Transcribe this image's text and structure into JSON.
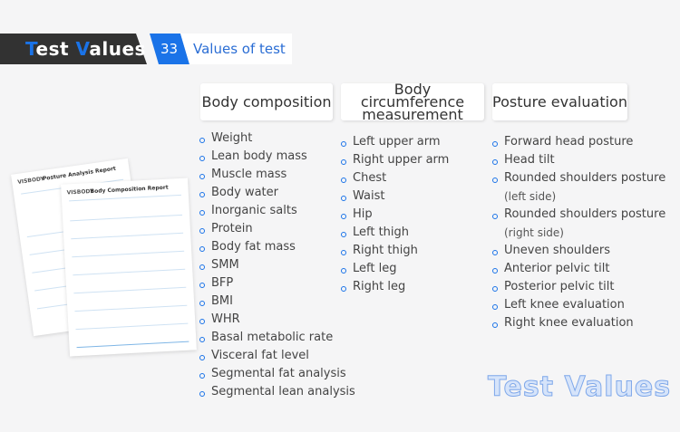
{
  "banner": {
    "title_first": "T",
    "title_mid": "est ",
    "title_v": "V",
    "title_rest": "alues",
    "count": "33",
    "count_label": "Values of test"
  },
  "columns": [
    {
      "header": "Body composition",
      "items": [
        "Weight",
        "Lean body mass",
        "Muscle mass",
        "Body water",
        "Inorganic salts",
        "Protein",
        "Body fat mass",
        "SMM",
        "BFP",
        "BMI",
        "WHR",
        "Basal metabolic rate",
        "Visceral fat level",
        "Segmental fat analysis",
        "Segmental lean analysis"
      ]
    },
    {
      "header_line1": "Body circumference",
      "header_line2": "measurement",
      "items": [
        "Left upper arm",
        "Right upper arm",
        "Chest",
        "Waist",
        "Hip",
        "Left thigh",
        "Right thigh",
        "Left leg",
        "Right leg"
      ]
    },
    {
      "header": "Posture evaluation",
      "items": [
        "Forward head posture",
        "Head tilt",
        "Rounded shoulders posture",
        "(left side)",
        "Rounded shoulders posture",
        "(right side)",
        "Uneven shoulders",
        "Anterior pelvic tilt",
        "Posterior pelvic tilt",
        "Left knee evaluation",
        "Right knee evaluation"
      ]
    }
  ],
  "documents": {
    "doc1_title": "Posture Analysis Report",
    "doc2_title": "Body Composition Report",
    "brand": "VISBODY"
  },
  "watermark": "Test Values",
  "colors": {
    "accent": "#1a73e8",
    "dark": "#323232",
    "background": "#f5f5f6"
  }
}
